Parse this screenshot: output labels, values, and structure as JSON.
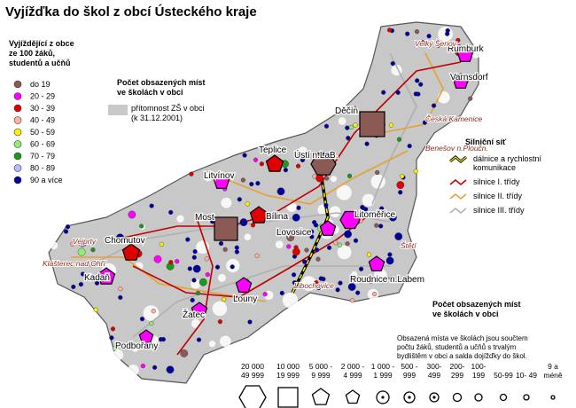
{
  "title": "Vyjížďka do škol z obcí Ústeckého kraje",
  "share_legend": {
    "title_lines": [
      "Vyjíždějící z obce",
      "ze 100 žáků,",
      "studentů a učňů"
    ],
    "items": [
      {
        "label": "do 19",
        "color": "#8b5a55"
      },
      {
        "label": "20 - 29",
        "color": "#ff00ff"
      },
      {
        "label": "30 - 39",
        "color": "#e00000"
      },
      {
        "label": "40 - 49",
        "color": "#ffb0a0"
      },
      {
        "label": "50 - 59",
        "color": "#ffee00"
      },
      {
        "label": "60 - 69",
        "color": "#90ee70"
      },
      {
        "label": "70 - 79",
        "color": "#1a9a1a"
      },
      {
        "label": "80 - 89",
        "color": "#b8b8ff"
      },
      {
        "label": "90 a více",
        "color": "#0000a0"
      }
    ]
  },
  "schools_legend": {
    "title_lines": [
      "Počet obsazených míst",
      "ve školách v obci"
    ],
    "note_lines": [
      "přítomnost ZŠ v obci",
      "(k 31.12.2001)"
    ],
    "color": "#c8c8c8"
  },
  "roads_legend": {
    "title": "Silniční síť",
    "items": [
      {
        "label_lines": [
          "dálnice a rychlostní",
          "komunikace"
        ],
        "color": "#000000"
      },
      {
        "label_lines": [
          "silnice I. třídy"
        ],
        "color": "#c00000"
      },
      {
        "label_lines": [
          "silnice II. třídy"
        ],
        "color": "#e8a030"
      },
      {
        "label_lines": [
          "silnice III. třídy"
        ],
        "color": "#b0b0b0"
      }
    ]
  },
  "size_legend": {
    "title_lines": [
      "Počet obsazených míst",
      "ve školách v obci"
    ],
    "description_lines": [
      "Obsazená místa ve školách jsou součtem",
      "počtu žáků, studentů a učňů s trvalým",
      "bydlištěm v obci a salda dojížďky do škol."
    ],
    "items": [
      {
        "label_lines": [
          "20 000",
          "49 999"
        ]
      },
      {
        "label_lines": [
          "10 000",
          "19 999"
        ]
      },
      {
        "label_lines": [
          "5 000 -",
          "9 999"
        ]
      },
      {
        "label_lines": [
          "2 000 -",
          "4 999"
        ]
      },
      {
        "label_lines": [
          "1 000 -",
          "1 999"
        ]
      },
      {
        "label_lines": [
          "500 -",
          "999"
        ]
      },
      {
        "label_lines": [
          "300-",
          "499"
        ]
      },
      {
        "label_lines": [
          "200-",
          "299"
        ]
      },
      {
        "label_lines": [
          "100-",
          "199"
        ]
      },
      {
        "label_lines": [
          "50-99"
        ]
      },
      {
        "label_lines": [
          "10- 49"
        ]
      },
      {
        "label_lines": [
          "9 a",
          "méně"
        ]
      }
    ]
  },
  "towns": [
    "Rumburk",
    "Varnsdorf",
    "Děčín",
    "Teplice",
    "Ústí n.LaB.",
    "Litvínov",
    "Most",
    "Bílina",
    "Litoměřice",
    "Lovosice",
    "Chomutov",
    "Kadaň",
    "Louny",
    "Žatec",
    "Roudnice n.Labem",
    "Podbořany"
  ],
  "places": [
    "Velký Šenov",
    "Česká Kamenice",
    "Benešov n.Ploučn.",
    "Vejprty",
    "Klášterec nad Ohří",
    "Libochovice",
    "Štětí"
  ]
}
